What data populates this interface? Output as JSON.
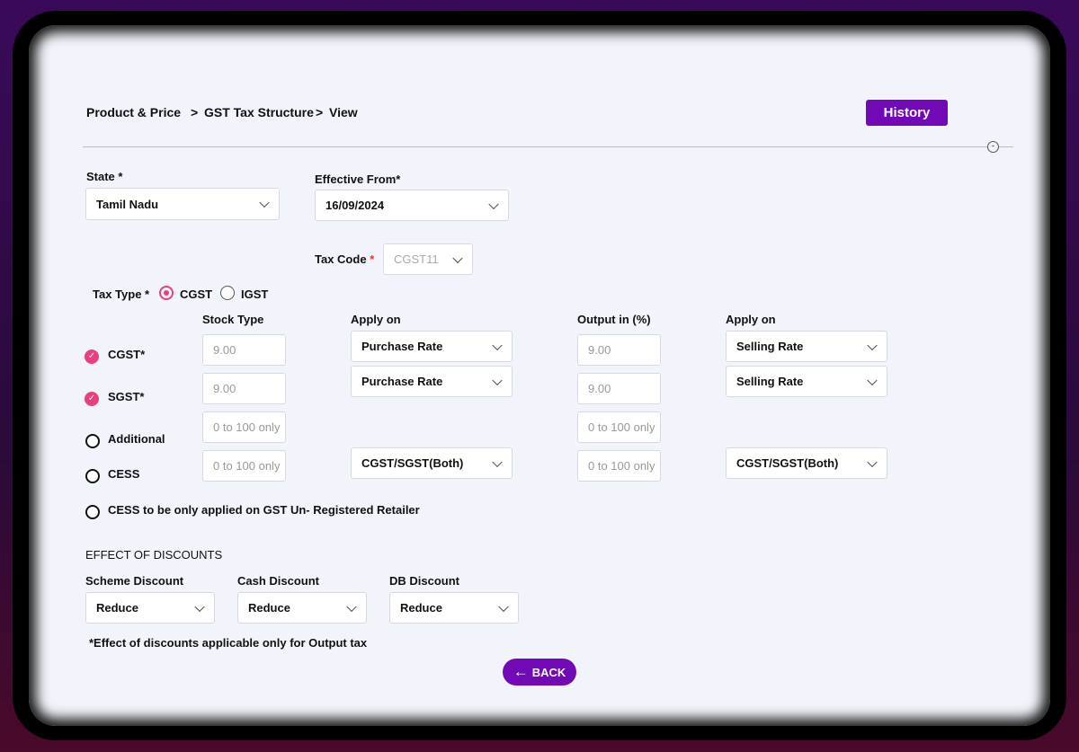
{
  "breadcrumb": {
    "item1": "Product & Price",
    "sep1": ">",
    "item2": "GST Tax Structure",
    "sep2": ">",
    "item3": "View"
  },
  "history_label": "History",
  "state": {
    "label": "State *",
    "value": "Tamil Nadu"
  },
  "effective_from": {
    "label": "Effective From*",
    "value": "16/09/2024"
  },
  "tax_code": {
    "label": "Tax Code",
    "required": "*",
    "value": "CGST11"
  },
  "tax_type": {
    "label": "Tax Type *",
    "options": [
      "CGST",
      "IGST"
    ],
    "selected": "CGST"
  },
  "columns": {
    "stock_type": "Stock Type",
    "apply_on": "Apply on",
    "output": "Output in (%)",
    "apply_on2": "Apply on"
  },
  "rows": [
    {
      "label": "CGST*",
      "checked": true,
      "stock": "9.00",
      "apply": "Purchase Rate",
      "output": "9.00",
      "apply2": "Selling Rate"
    },
    {
      "label": "SGST*",
      "checked": true,
      "stock": "9.00",
      "apply": "Purchase Rate",
      "output": "9.00",
      "apply2": "Selling Rate"
    },
    {
      "label": "Additional",
      "checked": false,
      "stock_placeholder": "0 to 100 only",
      "output_placeholder": "0 to 100 only"
    },
    {
      "label": "CESS",
      "checked": false,
      "stock_placeholder": "0 to 100 only",
      "apply": "CGST/SGST(Both)",
      "output_placeholder": "0 to 100 only",
      "apply2": "CGST/SGST(Both)"
    }
  ],
  "cess_unregistered": "CESS to be only applied on GST Un- Registered Retailer",
  "discounts": {
    "title": "EFFECT OF DISCOUNTS",
    "scheme": {
      "label": "Scheme Discount",
      "value": "Reduce"
    },
    "cash": {
      "label": "Cash Discount",
      "value": "Reduce"
    },
    "db": {
      "label": "DB Discount",
      "value": "Reduce"
    },
    "note": "*Effect of discounts applicable only for Output tax"
  },
  "back_label": "BACK",
  "colors": {
    "accent": "#7209b7",
    "check": "#e8407e"
  }
}
